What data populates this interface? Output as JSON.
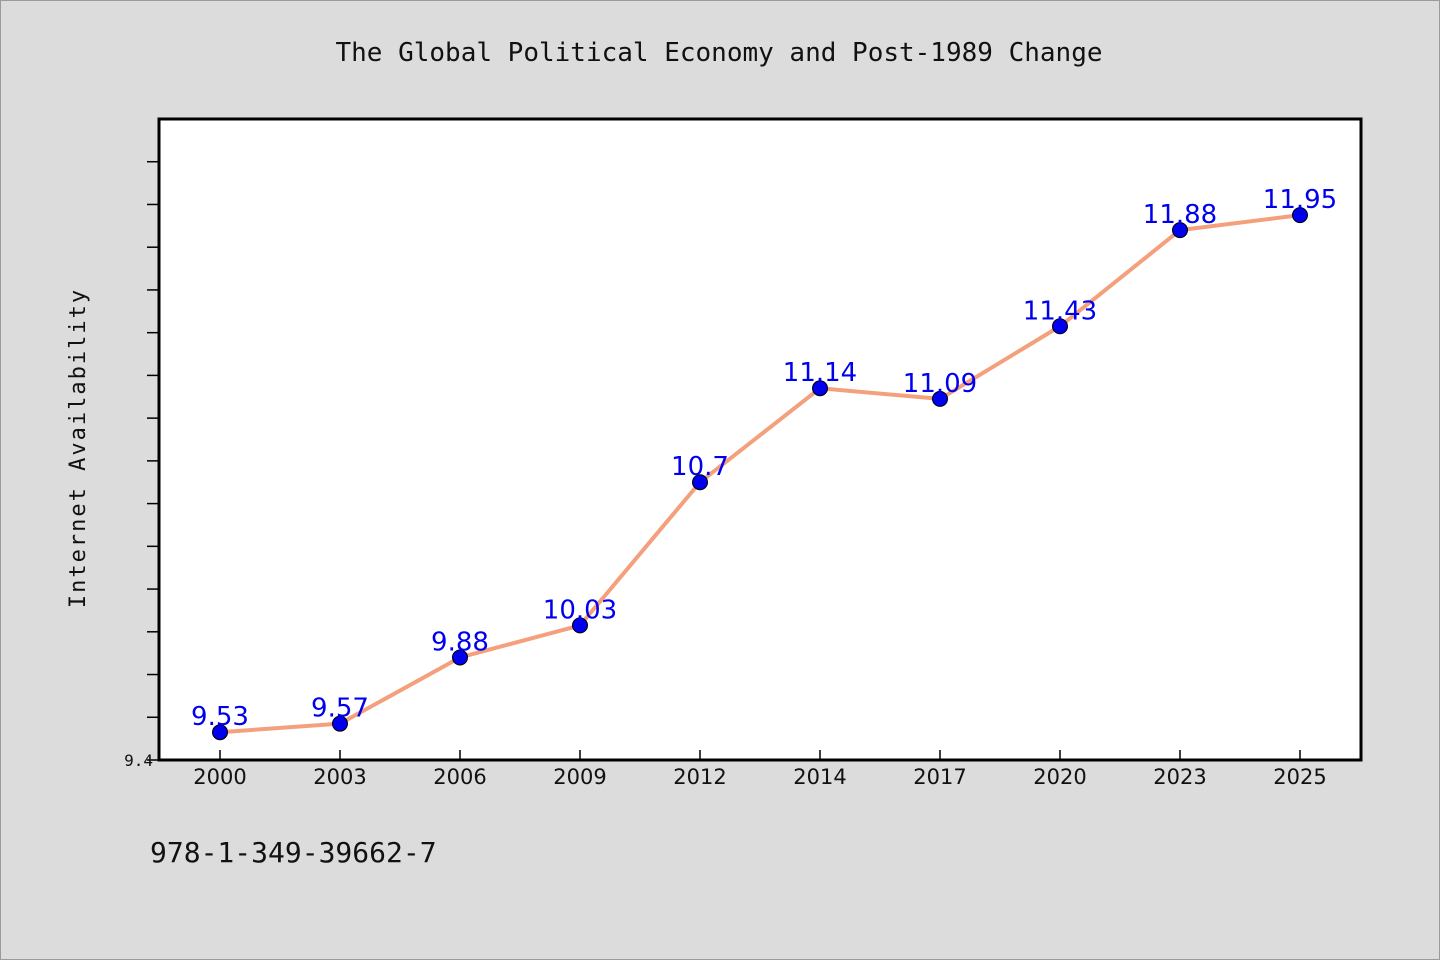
{
  "chart_data": {
    "type": "line",
    "title": "The Global Political Economy and Post-1989 Change",
    "xlabel": "",
    "ylabel": "Internet Availability",
    "categories": [
      "2000",
      "2003",
      "2006",
      "2009",
      "2012",
      "2014",
      "2017",
      "2020",
      "2023",
      "2025"
    ],
    "series": [
      {
        "values": [
          9.53,
          9.57,
          9.88,
          10.03,
          10.7,
          11.14,
          11.09,
          11.43,
          11.88,
          11.95
        ]
      }
    ],
    "data_labels": [
      "9.53",
      "9.57",
      "9.88",
      "10.03",
      "10.7",
      "11.14",
      "11.09",
      "11.43",
      "11.88",
      "11.95"
    ],
    "y_tick_labels": [
      "9.4"
    ],
    "ylim": [
      9.4,
      12.4
    ],
    "grid": false,
    "legend": "none",
    "colors": {
      "line": "#f4a07c",
      "marker": "#0000ee",
      "label": "#0000ee",
      "background": "#dcdcdc",
      "plot_bg": "#ffffff"
    }
  },
  "footer": {
    "text": "978-1-349-39662-7"
  }
}
